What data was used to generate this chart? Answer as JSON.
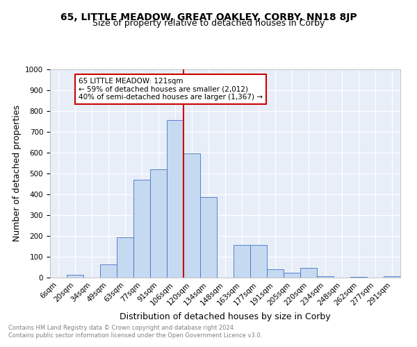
{
  "title": "65, LITTLE MEADOW, GREAT OAKLEY, CORBY, NN18 8JP",
  "subtitle": "Size of property relative to detached houses in Corby",
  "xlabel": "Distribution of detached houses by size in Corby",
  "ylabel": "Number of detached properties",
  "footer": "Contains HM Land Registry data © Crown copyright and database right 2024.\nContains public sector information licensed under the Open Government Licence v3.0.",
  "bin_labels": [
    "6sqm",
    "20sqm",
    "34sqm",
    "49sqm",
    "63sqm",
    "77sqm",
    "91sqm",
    "106sqm",
    "120sqm",
    "134sqm",
    "148sqm",
    "163sqm",
    "177sqm",
    "191sqm",
    "205sqm",
    "220sqm",
    "234sqm",
    "248sqm",
    "262sqm",
    "277sqm",
    "291sqm"
  ],
  "bar_values": [
    0,
    12,
    0,
    62,
    193,
    469,
    519,
    757,
    596,
    386,
    0,
    157,
    157,
    40,
    25,
    46,
    6,
    0,
    3,
    0,
    8
  ],
  "bar_color": "#c5d9f1",
  "bar_edge_color": "#4472c4",
  "vline_label_idx": 8,
  "vline_color": "#cc0000",
  "annotation_text": "65 LITTLE MEADOW: 121sqm\n← 59% of detached houses are smaller (2,012)\n40% of semi-detached houses are larger (1,367) →",
  "annotation_box_color": "#cc0000",
  "ylim": [
    0,
    1000
  ],
  "yticks": [
    0,
    100,
    200,
    300,
    400,
    500,
    600,
    700,
    800,
    900,
    1000
  ],
  "background_color": "#e8eef8",
  "title_fontsize": 10,
  "subtitle_fontsize": 9,
  "ylabel_fontsize": 9,
  "xlabel_fontsize": 9,
  "tick_fontsize": 7.5,
  "annotation_fontsize": 7.5,
  "footer_fontsize": 6,
  "footer_color": "#808080"
}
